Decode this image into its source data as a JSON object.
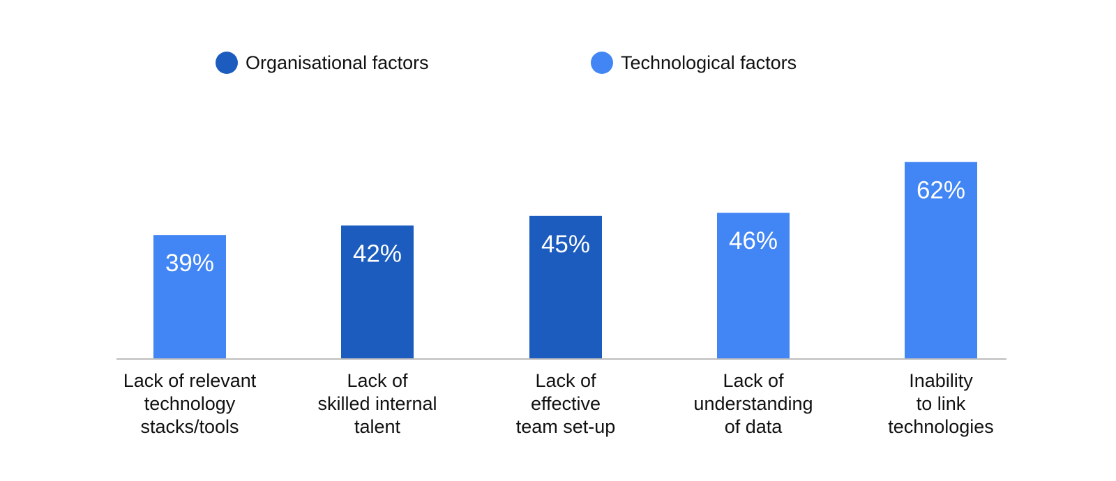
{
  "chart_data": {
    "type": "bar",
    "legend": {
      "placement": "top",
      "entries": [
        {
          "key": "organisational",
          "label": "Organisational factors",
          "color": "#1b5cbe"
        },
        {
          "key": "technological",
          "label": "Technological factors",
          "color": "#4285f4"
        }
      ]
    },
    "categories": [
      [
        "Lack of relevant",
        "technology",
        "stacks/tools"
      ],
      [
        "Lack of",
        "skilled internal",
        "talent"
      ],
      [
        "Lack of",
        "effective",
        "team set-up"
      ],
      [
        "Lack of",
        "understanding",
        "of data"
      ],
      [
        "Inability",
        "to link",
        "technologies"
      ]
    ],
    "values": [
      39,
      42,
      45,
      46,
      62
    ],
    "value_labels": [
      "39%",
      "42%",
      "45%",
      "46%",
      "62%"
    ],
    "bar_groups": [
      "technological",
      "organisational",
      "organisational",
      "technological",
      "technological"
    ],
    "ylim": [
      0,
      100
    ],
    "grid": false,
    "baseline_color": "#bdbdbd"
  }
}
